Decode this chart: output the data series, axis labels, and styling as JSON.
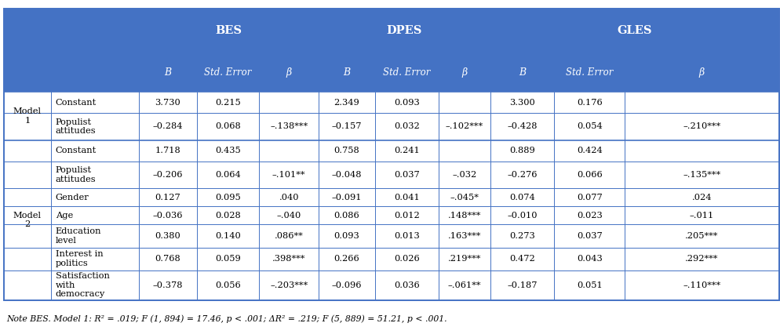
{
  "header_bg": "#4472C4",
  "header_text_color": "#FFFFFF",
  "border_color": "#4472C4",
  "note_text": "Note BES. Model 1: R² = .019; F (1, 894) = 17.46, p < .001; ΔR² = .219; F (5, 889) = 51.21, p < .001.",
  "col_groups": [
    "BES",
    "DPES",
    "GLES"
  ],
  "row_labels_col2": [
    "Constant",
    "Populist\nattitudes",
    "Constant",
    "Populist\nattitudes",
    "Gender",
    "Age",
    "Education\nlevel",
    "Interest in\npolitics",
    "Satisfaction\nwith\ndemocracy"
  ],
  "data": [
    [
      "3.730",
      "0.215",
      "",
      "2.349",
      "0.093",
      "",
      "3.300",
      "0.176",
      ""
    ],
    [
      "–0.284",
      "0.068",
      "–.138***",
      "–0.157",
      "0.032",
      "–.102***",
      "–0.428",
      "0.054",
      "–.210***"
    ],
    [
      "1.718",
      "0.435",
      "",
      "0.758",
      "0.241",
      "",
      "0.889",
      "0.424",
      ""
    ],
    [
      "–0.206",
      "0.064",
      "–.101**",
      "–0.048",
      "0.037",
      "–.032",
      "–0.276",
      "0.066",
      "–.135***"
    ],
    [
      "0.127",
      "0.095",
      ".040",
      "–0.091",
      "0.041",
      "–.045*",
      "0.074",
      "0.077",
      ".024"
    ],
    [
      "–0.036",
      "0.028",
      "–.040",
      "0.086",
      "0.012",
      ".148***",
      "–0.010",
      "0.023",
      "–.011"
    ],
    [
      "0.380",
      "0.140",
      ".086**",
      "0.093",
      "0.013",
      ".163***",
      "0.273",
      "0.037",
      ".205***"
    ],
    [
      "0.768",
      "0.059",
      ".398***",
      "0.266",
      "0.026",
      ".219***",
      "0.472",
      "0.043",
      ".292***"
    ],
    [
      "–0.378",
      "0.056",
      "–.203***",
      "–0.096",
      "0.036",
      "–.061**",
      "–0.187",
      "0.051",
      "–.110***"
    ]
  ],
  "row_heights_rel": [
    1.0,
    1.3,
    1.0,
    1.3,
    0.85,
    0.85,
    1.1,
    1.1,
    1.4
  ],
  "model1_rows": [
    0,
    1
  ],
  "model2_rows": [
    2,
    3,
    4,
    5,
    6,
    7,
    8
  ]
}
